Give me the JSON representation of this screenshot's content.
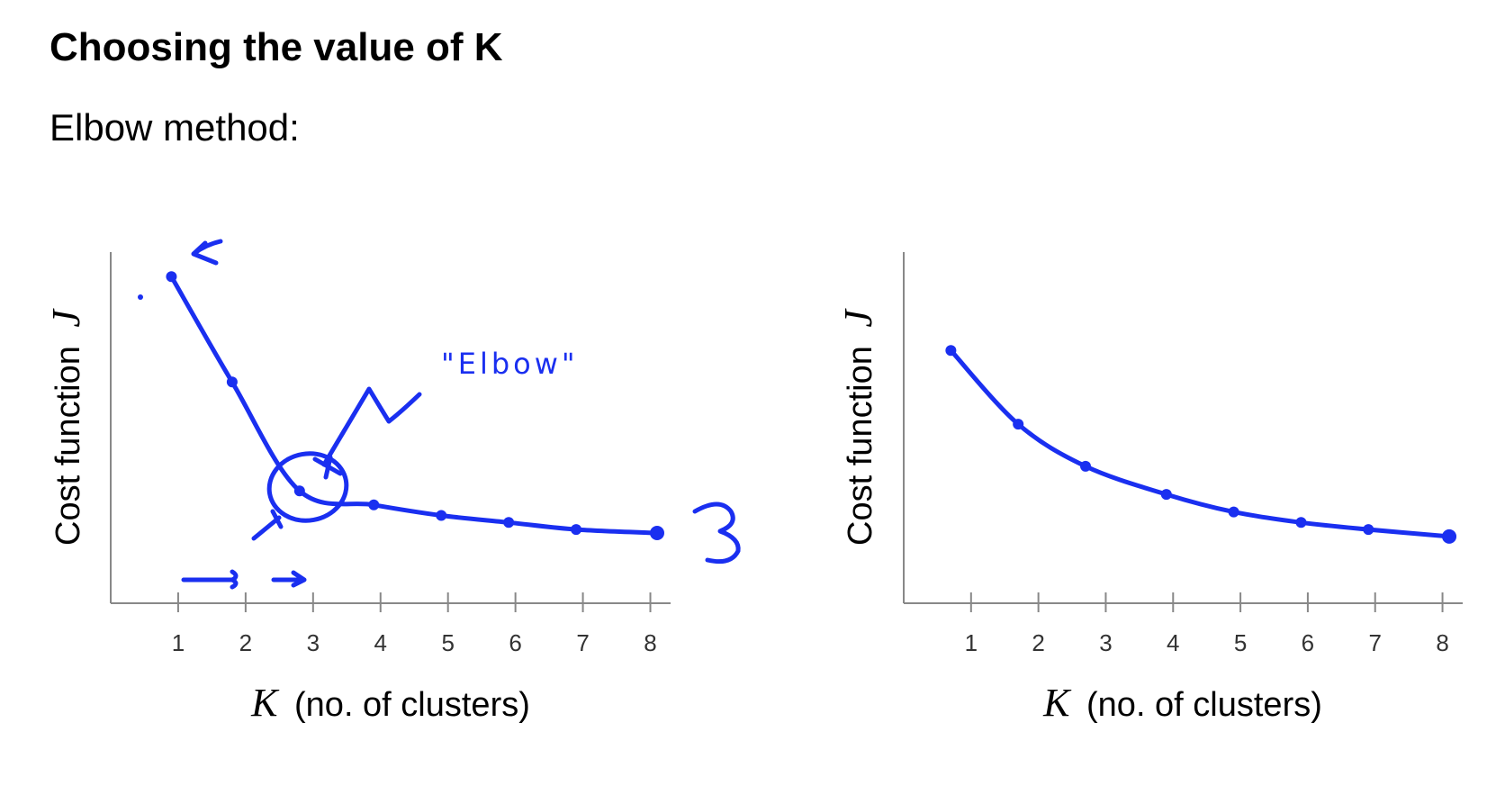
{
  "page": {
    "title": "Choosing the value of K",
    "subtitle": "Elbow method:"
  },
  "colors": {
    "ink": "#1a2ff0",
    "axis": "#888888"
  },
  "annotations": {
    "elbow_label": "\"Elbow\""
  },
  "chart_data": [
    {
      "type": "line",
      "title": "",
      "xlabel_var": "K",
      "xlabel": "(no. of clusters)",
      "ylabel": "Cost function",
      "ylabel_var": "J",
      "categories": [
        1,
        2,
        3,
        4,
        5,
        6,
        7,
        8
      ],
      "x": [
        0.9,
        1.8,
        2.8,
        3.9,
        4.9,
        5.9,
        6.9,
        8.1
      ],
      "values": [
        93,
        63,
        32,
        28,
        25,
        23,
        21,
        20
      ],
      "xlim": [
        0,
        8.3
      ],
      "ylim": [
        0,
        100
      ],
      "annotation": "elbow at K=3"
    },
    {
      "type": "line",
      "title": "",
      "xlabel_var": "K",
      "xlabel": "(no. of clusters)",
      "ylabel": "Cost function",
      "ylabel_var": "J",
      "categories": [
        1,
        2,
        3,
        4,
        5,
        6,
        7,
        8
      ],
      "x": [
        0.7,
        1.7,
        2.7,
        3.9,
        4.9,
        5.9,
        6.9,
        8.1
      ],
      "values": [
        72,
        51,
        39,
        31,
        26,
        23,
        21,
        19
      ],
      "xlim": [
        0,
        8.3
      ],
      "ylim": [
        0,
        100
      ]
    }
  ]
}
